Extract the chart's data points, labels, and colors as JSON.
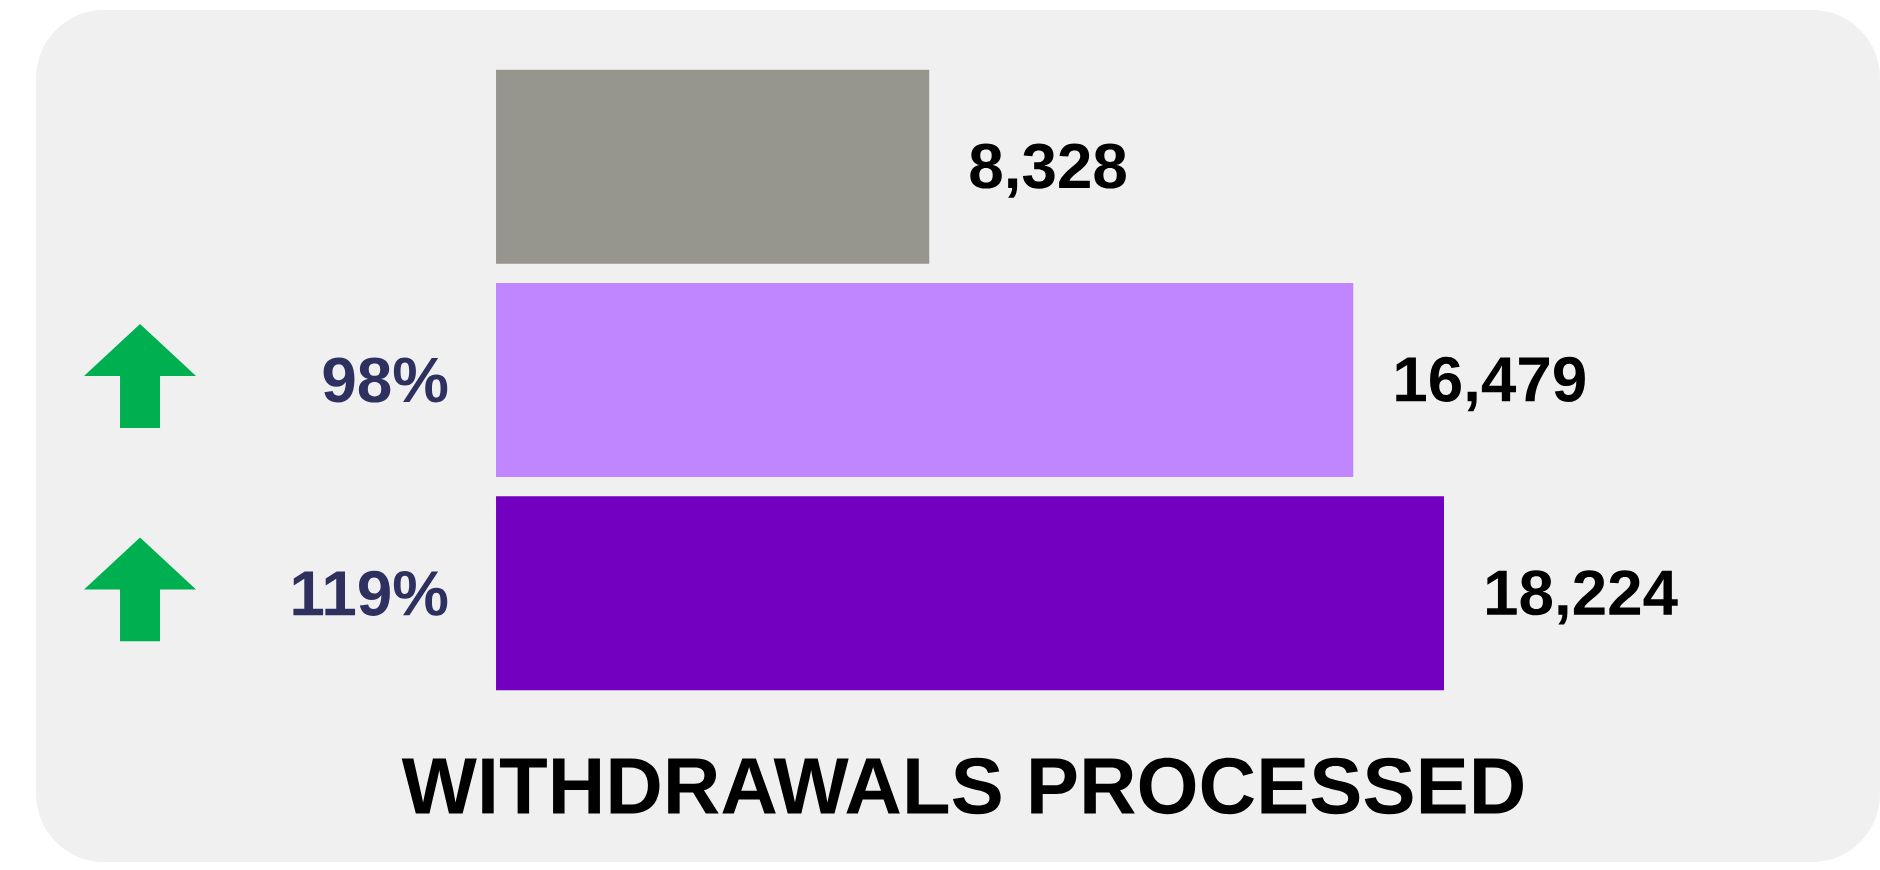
{
  "chart_data": {
    "type": "bar",
    "orientation": "horizontal",
    "title": "WITHDRAWALS PROCESSED",
    "categories": [
      null,
      null,
      null
    ],
    "values": [
      8328,
      16479,
      18224
    ],
    "colors": [
      "#97968e",
      "#bf86ff",
      "#7300c0"
    ],
    "value_labels": [
      "8,328",
      "16,479",
      "18,224"
    ],
    "annotations": [
      "98%",
      "119%"
    ],
    "tick_labels": false
  }
}
